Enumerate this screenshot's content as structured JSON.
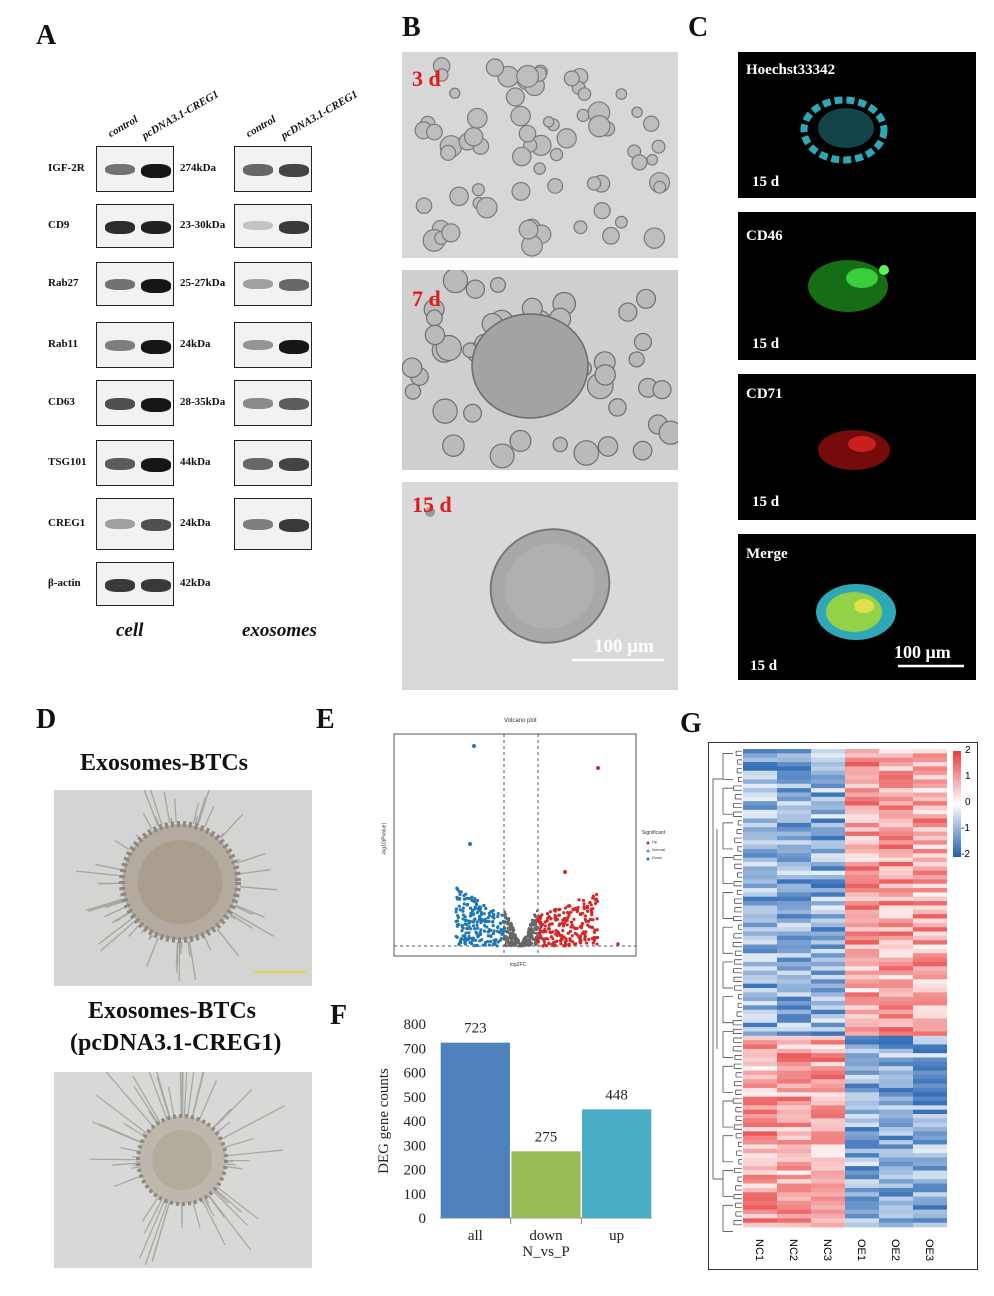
{
  "panels": {
    "A": "A",
    "B": "B",
    "C": "C",
    "D": "D",
    "E": "E",
    "F": "F",
    "G": "G"
  },
  "blot": {
    "col_headers_cell": [
      "control",
      "pcDNA3.1-CREG1"
    ],
    "col_headers_exo": [
      "control",
      "pcDNA3.1-CREG1"
    ],
    "rows": [
      {
        "protein": "IGF-2R",
        "weight": "274kDa"
      },
      {
        "protein": "CD9",
        "weight": "23-30kDa"
      },
      {
        "protein": "Rab27",
        "weight": "25-27kDa"
      },
      {
        "protein": "Rab11",
        "weight": "24kDa"
      },
      {
        "protein": "CD63",
        "weight": "28-35kDa"
      },
      {
        "protein": "TSG101",
        "weight": "44kDa"
      },
      {
        "protein": "CREG1",
        "weight": "24kDa"
      },
      {
        "protein": "β-actin",
        "weight": "42kDa"
      }
    ],
    "caption_cell": "cell",
    "caption_exo": "exosomes"
  },
  "panelB": {
    "labels": [
      "3 d",
      "7 d",
      "15 d"
    ],
    "scalebar": "100 μm"
  },
  "panelC": {
    "channels": [
      {
        "name": "Hoechst33342",
        "time": "15 d",
        "color": "#36c6d6"
      },
      {
        "name": "CD46",
        "time": "15 d",
        "color": "#2fcf2f"
      },
      {
        "name": "CD71",
        "time": "15 d",
        "color": "#d81e1e"
      },
      {
        "name": "Merge",
        "time": "15 d",
        "color": "#9fd63a"
      }
    ],
    "scalebar": "100 μm"
  },
  "panelD": {
    "title1": "Exosomes-BTCs",
    "title2_line1": "Exosomes-BTCs",
    "title2_line2": "(pcDNA3.1-CREG1)"
  },
  "panelE": {
    "title": "Volcano plot",
    "xlabel": "log2FC",
    "ylabel": "-log10(Pvalue)",
    "legend_title": "Significant",
    "legend": [
      "Up",
      "Normal",
      "Down"
    ]
  },
  "chart_data": [
    {
      "type": "bar",
      "categories": [
        "all",
        "down",
        "up"
      ],
      "values": [
        723,
        275,
        448
      ],
      "colors": [
        "#4f81bd",
        "#9bbb59",
        "#4bacc6"
      ],
      "xlabel": "N_vs_P",
      "ylabel": "DEG gene counts",
      "ylim": [
        0,
        800
      ],
      "yticks": [
        0,
        100,
        200,
        300,
        400,
        500,
        600,
        700,
        800
      ]
    }
  ],
  "panelG": {
    "samples": [
      "NC1",
      "NC2",
      "NC3",
      "OE1",
      "OE2",
      "OE3"
    ],
    "legend_ticks": [
      "2",
      "1",
      "0",
      "-1",
      "-2"
    ]
  }
}
